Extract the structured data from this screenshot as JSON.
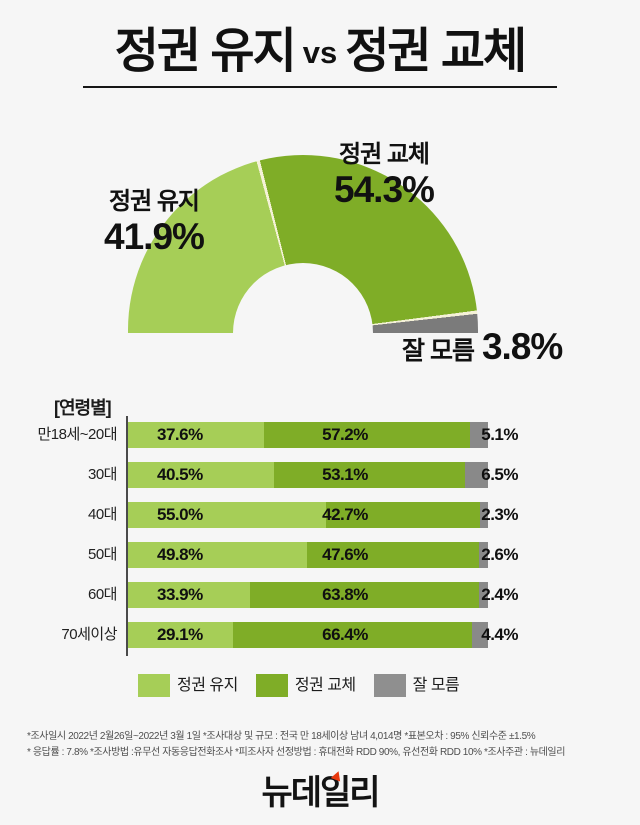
{
  "title": {
    "left": "정권 유지",
    "vs": "vs",
    "right": "정권 교체"
  },
  "donut_labels": {
    "maintain_name": "정권 유지",
    "maintain_value": "41.9%",
    "change_name": "정권 교체",
    "change_value": "54.3%",
    "unknown_name": "잘 모름",
    "unknown_value": "3.8%"
  },
  "age_section_label": "[연령별]",
  "legend": [
    {
      "label": "정권 유지",
      "color": "#a6ce57"
    },
    {
      "label": "정권 교체",
      "color": "#7fad27"
    },
    {
      "label": "잘 모름",
      "color": "#8f8f8f"
    }
  ],
  "footer": {
    "line1": "*조사일시  2022년 2월26일~2022년 3월 1일  *조사대상 및 규모 : 전국 만 18세이상 남녀 4,014명   *표본오차 : 95% 신뢰수준 ±1.5%",
    "line2": "* 응답률 : 7.8%  *조사방법 :유무선 자동응답전화조사  *피조사자 선정방법 : 휴대전화 RDD  90%, 유선전화 RDD 10%   *조사주관 : 뉴데일리"
  },
  "logo": {
    "text": "뉴데일리",
    "accent_color": "#e8380d"
  },
  "colors": {
    "light_green": "#a6ce57",
    "dark_green": "#7fad27",
    "chart_gray": "#7b7b7b",
    "bar_gray": "#898989",
    "separator": "#f5f2d8",
    "background": "#f6f6f6"
  },
  "chart_data": [
    {
      "type": "pie",
      "shape": "semi-donut",
      "title": "정권 유지 vs 정권 교체",
      "labels": [
        "정권 유지",
        "정권 교체",
        "잘 모름"
      ],
      "values": [
        41.9,
        54.3,
        3.8
      ],
      "colors": [
        "#a6ce57",
        "#7fad27",
        "#7b7b7b"
      ],
      "legend_position": "on-chart-labels"
    },
    {
      "type": "bar",
      "orientation": "horizontal",
      "stacked": true,
      "title": "[연령별]",
      "categories": [
        "만18세~20대",
        "30대",
        "40대",
        "50대",
        "60대",
        "70세이상"
      ],
      "series": [
        {
          "name": "정권 유지",
          "values": [
            37.6,
            40.5,
            55.0,
            49.8,
            33.9,
            29.1
          ]
        },
        {
          "name": "정권 교체",
          "values": [
            57.2,
            53.1,
            42.7,
            47.6,
            63.8,
            66.4
          ]
        },
        {
          "name": "잘 모름",
          "values": [
            5.1,
            6.5,
            2.3,
            2.6,
            2.4,
            4.4
          ]
        }
      ],
      "colors": [
        "#a6ce57",
        "#7fad27",
        "#898989"
      ],
      "xlim": [
        0,
        100
      ],
      "grid": false,
      "legend_position": "bottom",
      "value_labels": true
    }
  ]
}
